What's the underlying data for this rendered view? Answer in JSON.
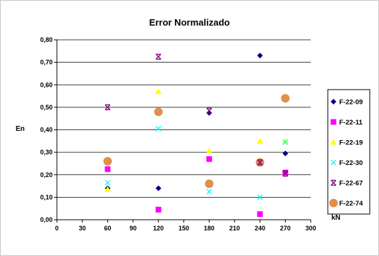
{
  "chart_data": {
    "type": "scatter",
    "title": "Error Normalizado",
    "xlabel": "kN",
    "ylabel": "En",
    "xlim": [
      0,
      300
    ],
    "ylim": [
      0,
      0.8
    ],
    "x_ticks": [
      "0",
      "30",
      "60",
      "90",
      "120",
      "150",
      "180",
      "210",
      "240",
      "270",
      "300"
    ],
    "x_tick_values": [
      0,
      30,
      60,
      90,
      120,
      150,
      180,
      210,
      240,
      270,
      300
    ],
    "y_ticks": [
      "0,00",
      "0,10",
      "0,20",
      "0,30",
      "0,40",
      "0,50",
      "0,60",
      "0,70",
      "0,80"
    ],
    "y_tick_values": [
      0,
      0.1,
      0.2,
      0.3,
      0.4,
      0.5,
      0.6,
      0.7,
      0.8
    ],
    "grid": "horizontal",
    "legend_position": "right",
    "series": [
      {
        "name": "F-22-09",
        "marker": "diamond",
        "color": "#000080",
        "x": [
          60,
          120,
          180,
          240,
          270
        ],
        "y": [
          0.14,
          0.14,
          0.475,
          0.73,
          0.295
        ]
      },
      {
        "name": "F-22-11",
        "marker": "square",
        "color": "#ff00ff",
        "x": [
          60,
          120,
          180,
          240,
          270
        ],
        "y": [
          0.225,
          0.045,
          0.27,
          0.025,
          0.21
        ]
      },
      {
        "name": "F-22-19",
        "marker": "triangle",
        "color": "#ffff00",
        "x": [
          60,
          120,
          180,
          240,
          270
        ],
        "y": [
          0.135,
          0.57,
          0.305,
          0.35,
          0.35
        ]
      },
      {
        "name": "F-22-30",
        "marker": "x",
        "color": "#00ffff",
        "x": [
          60,
          120,
          180,
          240,
          270
        ],
        "y": [
          0.165,
          0.405,
          0.125,
          0.1,
          0.345
        ]
      },
      {
        "name": "F-22-67",
        "marker": "star",
        "color": "#800080",
        "x": [
          60,
          120,
          180,
          240,
          270
        ],
        "y": [
          0.5,
          0.725,
          0.485,
          0.255,
          0.205
        ]
      },
      {
        "name": "F-22-74",
        "marker": "circle",
        "color": "#e0904a",
        "x": [
          60,
          120,
          180,
          240,
          270
        ],
        "y": [
          0.26,
          0.48,
          0.16,
          0.255,
          0.54
        ]
      }
    ]
  }
}
